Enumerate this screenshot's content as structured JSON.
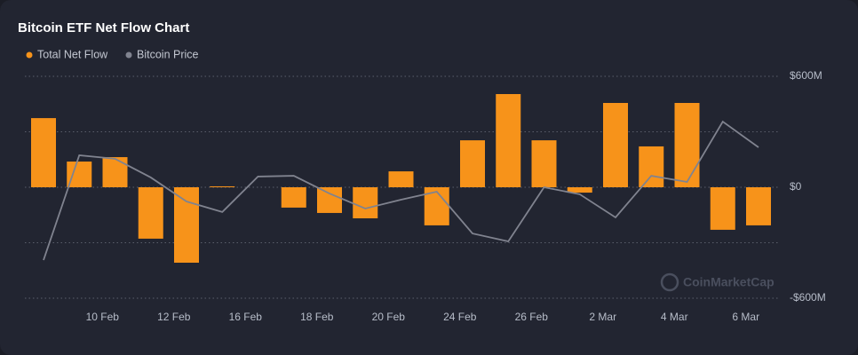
{
  "chart_data": {
    "type": "bar",
    "title": "Bitcoin ETF Net Flow Chart",
    "watermark": "CoinMarketCap",
    "categories": [
      null,
      "10 Feb",
      null,
      "12 Feb",
      null,
      "16 Feb",
      null,
      "18 Feb",
      null,
      "20 Feb",
      null,
      "24 Feb",
      null,
      "26 Feb",
      null,
      "2 Mar",
      null,
      "4 Mar",
      null,
      "6 Mar",
      null
    ],
    "series": [
      {
        "name": "Total Net Flow",
        "color": "#f7931a",
        "type": "bar",
        "values": [
          374,
          139,
          163,
          -278,
          -408,
          5,
          null,
          -110,
          -139,
          -168,
          86,
          -206,
          254,
          504,
          254,
          -29,
          456,
          221,
          456,
          -230,
          -206
        ]
      },
      {
        "name": "Bitcoin Price",
        "color": "#80838f",
        "type": "line",
        "values": [
          -394,
          173,
          154,
          53,
          -77,
          -134,
          58,
          62,
          -34,
          -115,
          -67,
          -24,
          -250,
          -293,
          0,
          -38,
          -163,
          62,
          29,
          355,
          216
        ]
      }
    ],
    "ylim": [
      -600,
      600
    ],
    "yticks": [
      {
        "value": -600,
        "label": "-$600M"
      },
      {
        "value": 0,
        "label": "$0"
      },
      {
        "value": 600,
        "label": "$600M"
      }
    ],
    "minor_gridlines": [
      -300,
      300
    ],
    "grid": true
  }
}
